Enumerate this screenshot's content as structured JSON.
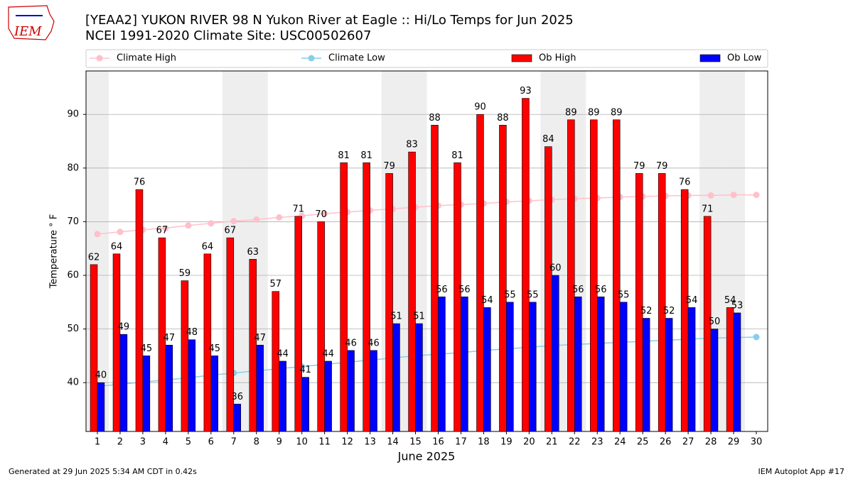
{
  "logo_text": "IEM",
  "footer": {
    "left": "Generated at 29 Jun 2025 5:34 AM CDT in 0.42s",
    "right": "IEM Autoplot App #17"
  },
  "chart_data": {
    "type": "bar",
    "title": "[YEAA2] YUKON RIVER 98 N Yukon River at Eagle :: Hi/Lo Temps for Jun 2025",
    "subtitle": "NCEI 1991-2020 Climate Site: USC00502607",
    "xlabel": "June 2025",
    "ylabel": "Temperature $^\\circ$F",
    "categories": [
      "1",
      "2",
      "3",
      "4",
      "5",
      "6",
      "7",
      "8",
      "9",
      "10",
      "11",
      "12",
      "13",
      "14",
      "15",
      "16",
      "17",
      "18",
      "19",
      "20",
      "21",
      "22",
      "23",
      "24",
      "25",
      "26",
      "27",
      "28",
      "29",
      "30"
    ],
    "shaded_categories": [
      "1",
      "7",
      "8",
      "14",
      "15",
      "21",
      "22",
      "28",
      "29"
    ],
    "ylim": [
      30.9,
      98.1
    ],
    "yticks": [
      40,
      50,
      60,
      70,
      80,
      90
    ],
    "grid": true,
    "legend": "top",
    "series": [
      {
        "name": "Climate High",
        "type": "line",
        "color": "#ffc0cb",
        "values": [
          67.7,
          68.1,
          68.5,
          68.8,
          69.3,
          69.7,
          70.1,
          70.4,
          70.8,
          71.1,
          71.5,
          71.8,
          72.1,
          72.4,
          72.7,
          73.0,
          73.2,
          73.4,
          73.7,
          73.9,
          74.1,
          74.3,
          74.4,
          74.6,
          74.7,
          74.8,
          74.9,
          74.9,
          75.0,
          75.0
        ]
      },
      {
        "name": "Climate Low",
        "type": "line",
        "color": "#87ceeb",
        "values": [
          39.3,
          39.7,
          40.1,
          40.5,
          40.9,
          41.4,
          41.8,
          42.2,
          42.6,
          43.0,
          43.4,
          43.8,
          44.2,
          44.6,
          45.0,
          45.3,
          45.6,
          46.0,
          46.3,
          46.6,
          46.9,
          47.1,
          47.3,
          47.5,
          47.7,
          47.9,
          48.1,
          48.3,
          48.4,
          48.5
        ]
      },
      {
        "name": "Ob High",
        "type": "bar",
        "color": "#ff0000",
        "values": [
          62,
          64,
          76,
          67,
          59,
          64,
          67,
          63,
          57,
          71,
          70,
          81,
          81,
          79,
          83,
          88,
          81,
          90,
          88,
          93,
          84,
          89,
          89,
          89,
          79,
          79,
          76,
          71,
          54,
          null
        ]
      },
      {
        "name": "Ob Low",
        "type": "bar",
        "color": "#0000ff",
        "values": [
          40,
          49,
          45,
          47,
          48,
          45,
          36,
          47,
          44,
          41,
          44,
          46,
          46,
          51,
          51,
          56,
          56,
          54,
          55,
          55,
          60,
          56,
          56,
          55,
          52,
          52,
          54,
          50,
          53,
          null
        ]
      }
    ]
  }
}
